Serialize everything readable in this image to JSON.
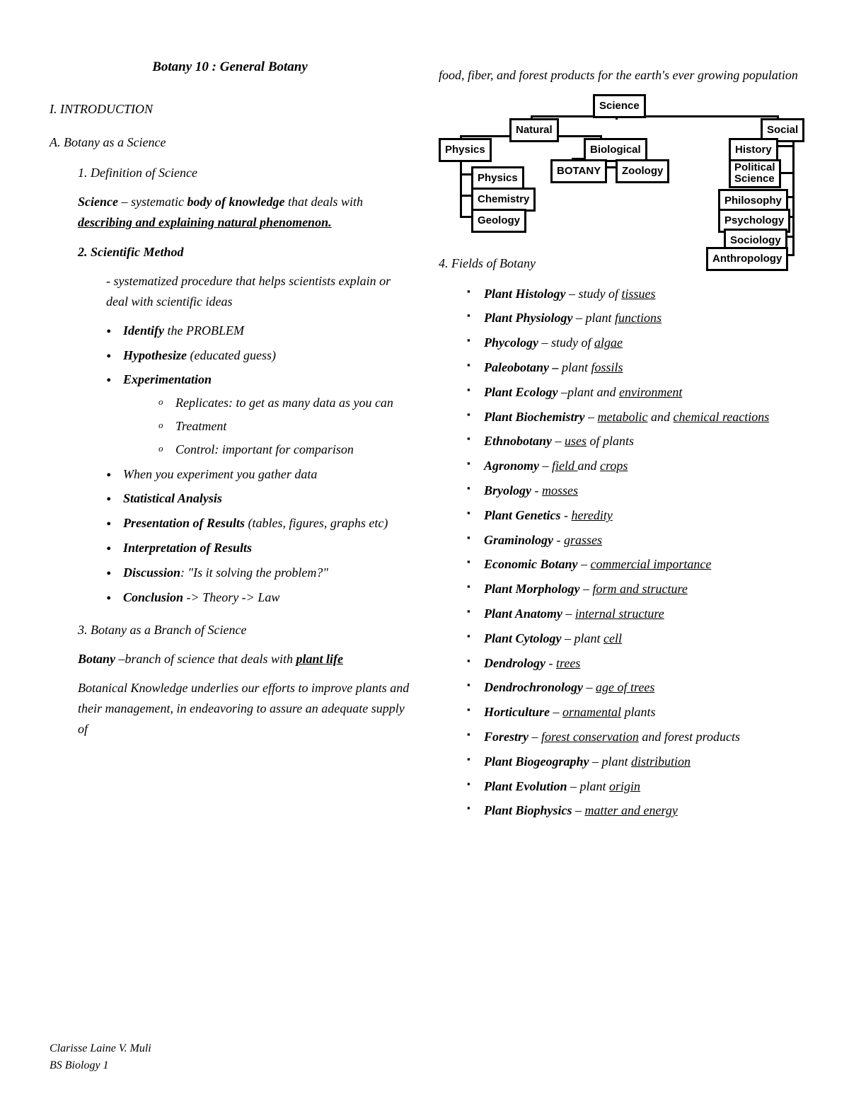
{
  "title": "Botany 10 : General Botany",
  "left": {
    "sec1": "I. INTRODUCTION",
    "secA": "A. Botany as a Science",
    "sec1_1": "1. Definition of Science",
    "science_label": "Science",
    "science_dash": " – systematic ",
    "science_bold2": "body of knowledge",
    "science_text2": " that deals with ",
    "science_bold3": "describing and explaining natural phenomenon.",
    "sec2": "2. Scientific Method",
    "sm_line": "- systematized procedure that helps scientists explain or deal with scientific ideas",
    "steps": {
      "identify_b": "Identify",
      "identify_t": " the PROBLEM",
      "hypo_b": "Hypothesize",
      "hypo_t": " (educated guess)",
      "exp_b": "Experimentation",
      "exp_sub": [
        "Replicates: to get as many data as you can",
        "Treatment",
        "Control: important for comparison"
      ],
      "gather": "When you experiment you gather data",
      "stat_b": "Statistical Analysis",
      "pres_b": "Presentation of Results",
      "pres_t": " (tables, figures, graphs etc)",
      "interp_b": "Interpretation of Results",
      "disc_b": "Discussion",
      "disc_t": ": \"Is it solving the problem?\"",
      "concl_b": "Conclusion",
      "concl_t": " -> Theory -> Law"
    },
    "sec3": "3. Botany as a Branch of Science",
    "botany_b": "Botany",
    "botany_t": " –branch of science that deals with ",
    "botany_b2": "plant life",
    "bk_para": "Botanical Knowledge underlies our efforts to improve plants and their management, in endeavoring to assure an adequate supply of"
  },
  "right": {
    "cont": "food, fiber, and forest products for the earth's ever growing population",
    "diagram": {
      "boxes": {
        "science": "Science",
        "natural": "Natural",
        "social": "Social",
        "physics1": "Physics",
        "biological": "Biological",
        "history": "History",
        "botany": "BOTANY",
        "zoology": "Zoology",
        "polsci": "Political Science",
        "physics2": "Physics",
        "chemistry": "Chemistry",
        "geology": "Geology",
        "philosophy": "Philosophy",
        "psychology": "Psychology",
        "sociology": "Sociology",
        "anthropology": "Anthropology"
      },
      "box_border": "#000000",
      "box_bg": "#ffffff",
      "line_color": "#000000"
    },
    "sec4": "4. Fields of Botany",
    "fields": [
      {
        "b": "Plant Histology",
        "t": " – study of ",
        "u": "tissues"
      },
      {
        "b": "Plant Physiology",
        "t": " – plant ",
        "u": "functions"
      },
      {
        "b": "Phycology",
        "t": " – study of ",
        "u": "algae"
      },
      {
        "b": "Paleobotany –",
        "t": " plant ",
        "u": "fossils"
      },
      {
        "b": "Plant Ecology",
        "t": " –plant and ",
        "u": "environment"
      },
      {
        "b": "Plant Biochemistry",
        "t": " – ",
        "u": "metabolic",
        "t2": " and ",
        "u2": "chemical reactions"
      },
      {
        "b": "Ethnobotany",
        "t": " – ",
        "u": "uses",
        "t2": " of plants"
      },
      {
        "b": "Agronomy",
        "t": " – ",
        "u": "field ",
        "t2": "and ",
        "u2": "crops"
      },
      {
        "b": "Bryology",
        "t": " - ",
        "u": "mosses"
      },
      {
        "b": "Plant Genetics",
        "t": " - ",
        "u": "heredity"
      },
      {
        "b": "Graminology",
        "t": " - ",
        "u": "grasses"
      },
      {
        "b": "Economic Botany",
        "t": " – ",
        "u": "commercial importance"
      },
      {
        "b": "Plant Morphology",
        "t": " – ",
        "u": "form and structure"
      },
      {
        "b": "Plant Anatomy",
        "t": " – ",
        "u": "internal structure"
      },
      {
        "b": "Plant Cytology",
        "t": " – plant ",
        "u": "cell"
      },
      {
        "b": "Dendrology",
        "t": " - ",
        "u": "trees"
      },
      {
        "b": "Dendrochronology",
        "t": " – ",
        "u": "age of trees"
      },
      {
        "b": "Horticulture",
        "t": " – ",
        "u": "ornamental",
        "t2": " plants"
      },
      {
        "b": "Forestry",
        "t": " – ",
        "u": "forest conservation",
        "t2": " and forest products"
      },
      {
        "b": "Plant Biogeography",
        "t": " – plant ",
        "u": "distribution"
      },
      {
        "b": "Plant Evolution",
        "t": " – plant ",
        "u": "origin"
      },
      {
        "b": "Plant Biophysics",
        "t": " – ",
        "u": "matter and energy"
      }
    ]
  },
  "footer": {
    "name": "Clarisse Laine V. Muli",
    "course": "BS Biology 1"
  }
}
